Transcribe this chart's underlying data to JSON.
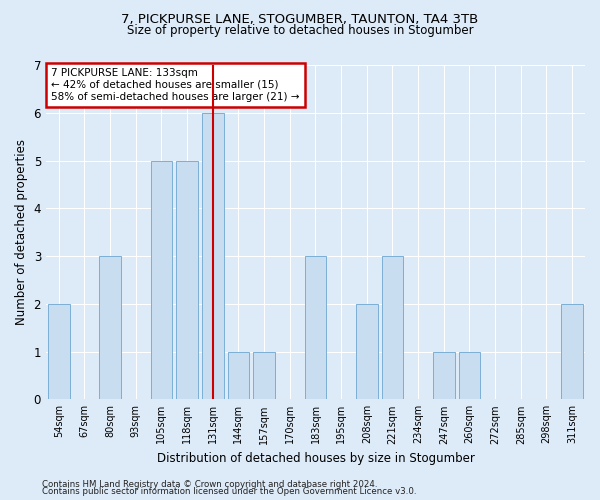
{
  "title1": "7, PICKPURSE LANE, STOGUMBER, TAUNTON, TA4 3TB",
  "title2": "Size of property relative to detached houses in Stogumber",
  "xlabel": "Distribution of detached houses by size in Stogumber",
  "ylabel": "Number of detached properties",
  "categories": [
    "54sqm",
    "67sqm",
    "80sqm",
    "93sqm",
    "105sqm",
    "118sqm",
    "131sqm",
    "144sqm",
    "157sqm",
    "170sqm",
    "183sqm",
    "195sqm",
    "208sqm",
    "221sqm",
    "234sqm",
    "247sqm",
    "260sqm",
    "272sqm",
    "285sqm",
    "298sqm",
    "311sqm"
  ],
  "values": [
    2,
    0,
    3,
    0,
    5,
    5,
    6,
    1,
    1,
    0,
    3,
    0,
    2,
    3,
    0,
    1,
    1,
    0,
    0,
    0,
    2
  ],
  "bar_color": "#c8ddf0",
  "bar_edge_color": "#7bafd4",
  "highlight_index": 6,
  "highlight_color": "#cc0000",
  "ylim": [
    0,
    7
  ],
  "yticks": [
    0,
    1,
    2,
    3,
    4,
    5,
    6,
    7
  ],
  "annotation_lines": [
    "7 PICKPURSE LANE: 133sqm",
    "← 42% of detached houses are smaller (15)",
    "58% of semi-detached houses are larger (21) →"
  ],
  "footer1": "Contains HM Land Registry data © Crown copyright and database right 2024.",
  "footer2": "Contains public sector information licensed under the Open Government Licence v3.0.",
  "bg_color": "#ddeaf7",
  "plot_bg_color": "#ddeaf7"
}
